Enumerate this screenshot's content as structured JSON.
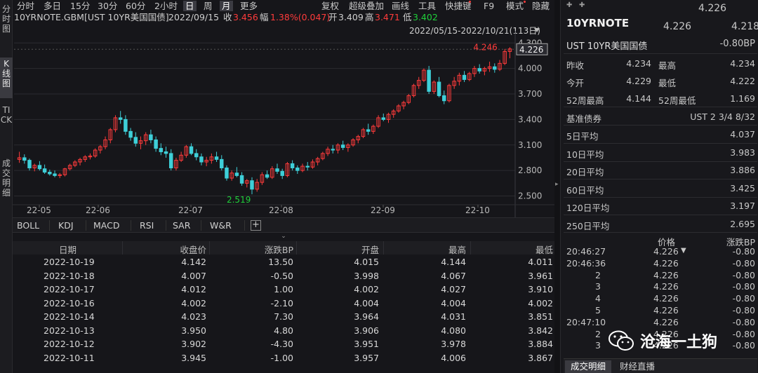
{
  "left_tabs": [
    {
      "label": "分时图"
    },
    {
      "label": "K线图"
    },
    {
      "label": "TICK"
    },
    {
      "label": "成交明细"
    }
  ],
  "toolbar": {
    "periods": [
      "分时",
      "多日",
      "15分",
      "30分",
      "60分",
      "2小时",
      "日",
      "周",
      "月",
      "更多"
    ],
    "selected_period": "日",
    "tools": [
      "复权",
      "超级叠加",
      "画线",
      "工具",
      "快捷键",
      "F9",
      "模式",
      "隐藏"
    ]
  },
  "info": {
    "symbol": "10YRNOTE.GBM[UST 10YR美国国债]",
    "date": "2022/09/15",
    "close_label": "收",
    "close": "3.456",
    "change_label": "幅",
    "change": "1.38%(0.047)",
    "open_label": "开",
    "open": "3.409",
    "high_label": "高",
    "high": "3.471",
    "low_label": "低",
    "low": "3.402"
  },
  "range_label": "2022/05/15-2022/10/21(113日)",
  "chart_data": {
    "type": "candlestick",
    "y_ticks": [
      "4.300",
      "4.000",
      "3.700",
      "3.400",
      "3.100",
      "2.800",
      "2.500"
    ],
    "ylim": [
      2.43,
      4.36
    ],
    "x_ticks": [
      "22-05",
      "22-06",
      "22-07",
      "22-08",
      "22-09",
      "22-10"
    ],
    "max_label": "4.246",
    "min_label": "2.519",
    "last_price": "4.226",
    "up_color": "#ff3b3b",
    "down_color": "#3ecfd8",
    "candles": [
      [
        2.93,
        3.02,
        2.89,
        2.95
      ],
      [
        2.95,
        2.99,
        2.88,
        2.92
      ],
      [
        2.92,
        2.94,
        2.8,
        2.83
      ],
      [
        2.83,
        2.88,
        2.79,
        2.86
      ],
      [
        2.86,
        2.91,
        2.8,
        2.82
      ],
      [
        2.82,
        2.87,
        2.76,
        2.78
      ],
      [
        2.78,
        2.81,
        2.74,
        2.76
      ],
      [
        2.76,
        2.8,
        2.72,
        2.74
      ],
      [
        2.74,
        2.77,
        2.71,
        2.75
      ],
      [
        2.75,
        2.83,
        2.73,
        2.82
      ],
      [
        2.82,
        2.88,
        2.8,
        2.86
      ],
      [
        2.86,
        2.92,
        2.84,
        2.9
      ],
      [
        2.9,
        2.95,
        2.86,
        2.93
      ],
      [
        2.93,
        2.98,
        2.9,
        2.96
      ],
      [
        2.96,
        3.0,
        2.93,
        2.97
      ],
      [
        2.97,
        3.06,
        2.95,
        3.04
      ],
      [
        3.04,
        3.1,
        3.0,
        3.08
      ],
      [
        3.08,
        3.2,
        3.05,
        3.16
      ],
      [
        3.16,
        3.3,
        3.12,
        3.28
      ],
      [
        3.28,
        3.45,
        3.25,
        3.42
      ],
      [
        3.42,
        3.5,
        3.35,
        3.4
      ],
      [
        3.4,
        3.45,
        3.22,
        3.26
      ],
      [
        3.26,
        3.3,
        3.15,
        3.19
      ],
      [
        3.19,
        3.25,
        3.08,
        3.12
      ],
      [
        3.12,
        3.2,
        3.05,
        3.15
      ],
      [
        3.15,
        3.25,
        3.1,
        3.22
      ],
      [
        3.22,
        3.28,
        3.12,
        3.16
      ],
      [
        3.16,
        3.2,
        3.02,
        3.06
      ],
      [
        3.06,
        3.12,
        2.98,
        3.02
      ],
      [
        3.02,
        3.08,
        2.95,
        3.0
      ],
      [
        3.0,
        3.05,
        2.8,
        2.83
      ],
      [
        2.83,
        2.95,
        2.8,
        2.92
      ],
      [
        2.92,
        3.02,
        2.9,
        2.98
      ],
      [
        2.98,
        3.1,
        2.95,
        3.08
      ],
      [
        3.08,
        3.12,
        2.98,
        3.0
      ],
      [
        3.0,
        3.05,
        2.92,
        2.96
      ],
      [
        2.96,
        3.0,
        2.86,
        2.9
      ],
      [
        2.9,
        2.96,
        2.85,
        2.92
      ],
      [
        2.92,
        3.0,
        2.88,
        2.96
      ],
      [
        2.96,
        3.02,
        2.9,
        2.93
      ],
      [
        2.93,
        2.98,
        2.8,
        2.83
      ],
      [
        2.83,
        2.86,
        2.68,
        2.71
      ],
      [
        2.71,
        2.8,
        2.68,
        2.77
      ],
      [
        2.77,
        2.84,
        2.72,
        2.74
      ],
      [
        2.74,
        2.78,
        2.62,
        2.65
      ],
      [
        2.65,
        2.7,
        2.6,
        2.68
      ],
      [
        2.68,
        2.72,
        2.52,
        2.58
      ],
      [
        2.58,
        2.7,
        2.55,
        2.66
      ],
      [
        2.66,
        2.78,
        2.63,
        2.75
      ],
      [
        2.75,
        2.8,
        2.7,
        2.72
      ],
      [
        2.72,
        2.85,
        2.7,
        2.82
      ],
      [
        2.82,
        2.88,
        2.76,
        2.79
      ],
      [
        2.79,
        2.82,
        2.7,
        2.74
      ],
      [
        2.74,
        2.9,
        2.72,
        2.88
      ],
      [
        2.88,
        2.92,
        2.8,
        2.83
      ],
      [
        2.83,
        2.86,
        2.76,
        2.8
      ],
      [
        2.8,
        2.88,
        2.78,
        2.85
      ],
      [
        2.85,
        2.9,
        2.8,
        2.84
      ],
      [
        2.84,
        2.93,
        2.82,
        2.9
      ],
      [
        2.9,
        2.96,
        2.86,
        2.94
      ],
      [
        2.94,
        3.02,
        2.92,
        3.0
      ],
      [
        3.0,
        3.08,
        2.97,
        3.05
      ],
      [
        3.05,
        3.1,
        3.0,
        3.04
      ],
      [
        3.04,
        3.12,
        3.0,
        3.1
      ],
      [
        3.1,
        3.15,
        3.04,
        3.07
      ],
      [
        3.07,
        3.12,
        3.02,
        3.1
      ],
      [
        3.1,
        3.18,
        3.08,
        3.16
      ],
      [
        3.16,
        3.22,
        3.12,
        3.2
      ],
      [
        3.2,
        3.3,
        3.18,
        3.28
      ],
      [
        3.28,
        3.35,
        3.22,
        3.26
      ],
      [
        3.26,
        3.34,
        3.23,
        3.32
      ],
      [
        3.32,
        3.45,
        3.3,
        3.42
      ],
      [
        3.42,
        3.47,
        3.38,
        3.4
      ],
      [
        3.4,
        3.48,
        3.36,
        3.46
      ],
      [
        3.46,
        3.52,
        3.42,
        3.5
      ],
      [
        3.5,
        3.58,
        3.48,
        3.56
      ],
      [
        3.56,
        3.62,
        3.52,
        3.6
      ],
      [
        3.6,
        3.7,
        3.58,
        3.68
      ],
      [
        3.68,
        3.82,
        3.66,
        3.8
      ],
      [
        3.8,
        3.9,
        3.76,
        3.86
      ],
      [
        3.86,
        4.0,
        3.84,
        3.98
      ],
      [
        3.98,
        4.03,
        3.7,
        3.73
      ],
      [
        3.73,
        3.86,
        3.7,
        3.84
      ],
      [
        3.84,
        3.9,
        3.66,
        3.68
      ],
      [
        3.68,
        3.74,
        3.58,
        3.62
      ],
      [
        3.62,
        3.82,
        3.6,
        3.8
      ],
      [
        3.8,
        3.9,
        3.76,
        3.85
      ],
      [
        3.85,
        3.95,
        3.8,
        3.92
      ],
      [
        3.92,
        3.97,
        3.84,
        3.87
      ],
      [
        3.87,
        3.96,
        3.85,
        3.94
      ],
      [
        3.94,
        4.03,
        3.9,
        4.0
      ],
      [
        4.0,
        4.05,
        3.94,
        3.97
      ],
      [
        3.97,
        4.02,
        3.92,
        4.0
      ],
      [
        4.0,
        4.08,
        3.96,
        4.02
      ],
      [
        4.02,
        4.06,
        3.95,
        3.99
      ],
      [
        3.99,
        4.1,
        3.97,
        4.06
      ],
      [
        4.06,
        4.23,
        4.04,
        4.2
      ],
      [
        4.2,
        4.25,
        4.12,
        4.23
      ]
    ]
  },
  "indicators": [
    "BOLL",
    "KDJ",
    "MACD",
    "RSI",
    "SAR",
    "W&R"
  ],
  "table": {
    "headers": [
      "日期",
      "收盘价",
      "涨跌BP",
      "开盘",
      "最高",
      "最低"
    ],
    "rows": [
      [
        "2022-10-19",
        "4.142",
        "13.50",
        "4.015",
        "4.144",
        "4.011"
      ],
      [
        "2022-10-18",
        "4.007",
        "-0.50",
        "3.998",
        "4.067",
        "3.961"
      ],
      [
        "2022-10-17",
        "4.012",
        "1.00",
        "4.002",
        "4.027",
        "3.910"
      ],
      [
        "2022-10-16",
        "4.002",
        "-2.10",
        "4.004",
        "4.004",
        "4.002"
      ],
      [
        "2022-10-14",
        "4.023",
        "7.30",
        "3.964",
        "4.031",
        "3.851"
      ],
      [
        "2022-10-13",
        "3.950",
        "4.80",
        "3.906",
        "4.080",
        "3.842"
      ],
      [
        "2022-10-12",
        "3.902",
        "-4.30",
        "3.951",
        "3.978",
        "3.884"
      ],
      [
        "2022-10-11",
        "3.945",
        "-1.00",
        "3.957",
        "4.006",
        "3.867"
      ]
    ]
  },
  "quote": {
    "top_price": "4.226",
    "name": "10YRNOTE",
    "bid": "4.226",
    "ask": "4.218",
    "fullname": "UST 10YR美国国债",
    "change": "-0.80BP",
    "stats": [
      {
        "l1": "昨收",
        "v1": "4.234",
        "l2": "最高",
        "v2": "4.234"
      },
      {
        "l1": "今开",
        "v1": "4.229",
        "l2": "最低",
        "v2": "4.222"
      },
      {
        "l1": "52周最高",
        "v1": "4.144",
        "l2": "52周最低",
        "v2": "1.169"
      }
    ],
    "bench_label": "基准债券",
    "bench_value": "UST 2 3/4 8/32",
    "averages": [
      {
        "l": "5日平均",
        "v": "4.037"
      },
      {
        "l": "10日平均",
        "v": "3.983"
      },
      {
        "l": "20日平均",
        "v": "3.886"
      },
      {
        "l": "60日平均",
        "v": "3.425"
      },
      {
        "l": "120日平均",
        "v": "3.197"
      },
      {
        "l": "250日平均",
        "v": "2.695"
      }
    ],
    "ticks_header": {
      "price": "价格",
      "chg": "涨跌BP"
    },
    "ticks": [
      {
        "t": "20:46:27",
        "p": "4.226",
        "c": "-0.80",
        "arrow": "down"
      },
      {
        "t": "20:46:36",
        "p": "4.226",
        "c": "-0.80"
      },
      {
        "t": "2",
        "p": "4.226",
        "c": "-0.80"
      },
      {
        "t": "3",
        "p": "4.226",
        "c": "-0.80"
      },
      {
        "t": "4",
        "p": "4.226",
        "c": "-0.80"
      },
      {
        "t": "5",
        "p": "4.226",
        "c": "-0.80"
      },
      {
        "t": "20:47:10",
        "p": "4.226",
        "c": "-0.80"
      },
      {
        "t": "2",
        "p": "4.226",
        "c": "-0.80"
      },
      {
        "t": "3",
        "p": "4.226",
        "c": "-0.80"
      }
    ],
    "tabs": [
      "成交明细",
      "财经直播"
    ]
  },
  "watermark": "沧海一土狗"
}
